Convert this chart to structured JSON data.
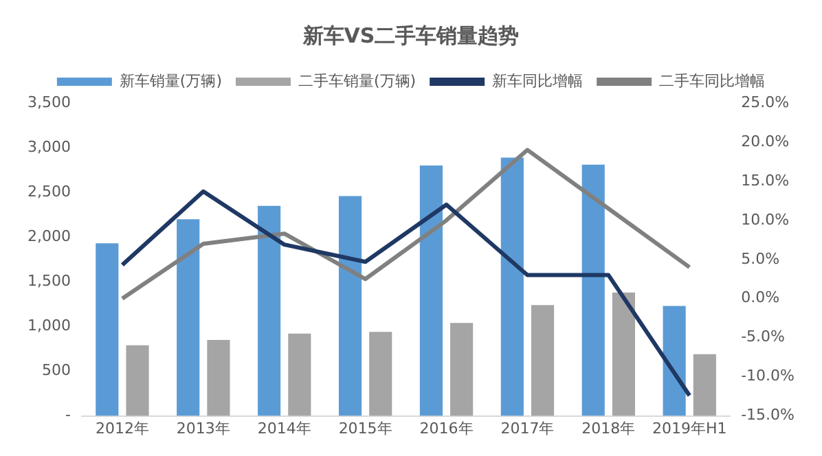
{
  "chart_data": {
    "type": "bar",
    "title": "新车VS二手车销量趋势",
    "categories": [
      "2012年",
      "2013年",
      "2014年",
      "2015年",
      "2016年",
      "2017年",
      "2018年",
      "2019年H1"
    ],
    "series": [
      {
        "name": "新车销量(万辆)",
        "color": "#5b9bd5",
        "values": [
          1930,
          2200,
          2350,
          2460,
          2800,
          2890,
          2810,
          1230
        ]
      },
      {
        "name": "二手车销量(万辆)",
        "color": "#a5a5a5",
        "values": [
          790,
          850,
          920,
          940,
          1040,
          1240,
          1380,
          690
        ]
      },
      {
        "name": "新车同比增幅",
        "type": "line",
        "axis": "y2",
        "color": "#1f3864",
        "values": [
          4.3,
          13.7,
          6.9,
          4.7,
          12,
          3,
          3,
          -12.4
        ]
      },
      {
        "name": "二手车同比增幅",
        "type": "line",
        "axis": "y2",
        "color": "#808080",
        "values": [
          0,
          7,
          8.3,
          2.5,
          10,
          19,
          11.5,
          4
        ]
      }
    ],
    "ylim": [
      0,
      3500
    ],
    "yticks": [
      {
        "value": 0,
        "label": "-"
      },
      {
        "value": 500,
        "label": "500"
      },
      {
        "value": 1000,
        "label": "1,000"
      },
      {
        "value": 1500,
        "label": "1,500"
      },
      {
        "value": 2000,
        "label": "2,000"
      },
      {
        "value": 2500,
        "label": "2,500"
      },
      {
        "value": 3000,
        "label": "3,000"
      },
      {
        "value": 3500,
        "label": "3,500"
      }
    ],
    "y2lim": [
      -15,
      25
    ],
    "y2ticks": [
      {
        "value": -15,
        "label": "-15.0%"
      },
      {
        "value": -10,
        "label": "-10.0%"
      },
      {
        "value": -5,
        "label": "-5.0%"
      },
      {
        "value": 0,
        "label": "0.0%"
      },
      {
        "value": 5,
        "label": "5.0%"
      },
      {
        "value": 10,
        "label": "10.0%"
      },
      {
        "value": 15,
        "label": "15.0%"
      },
      {
        "value": 20,
        "label": "20.0%"
      },
      {
        "value": 25,
        "label": "25.0%"
      }
    ],
    "grid": false,
    "legend": "top",
    "marker": "none",
    "line_style": "solid"
  }
}
